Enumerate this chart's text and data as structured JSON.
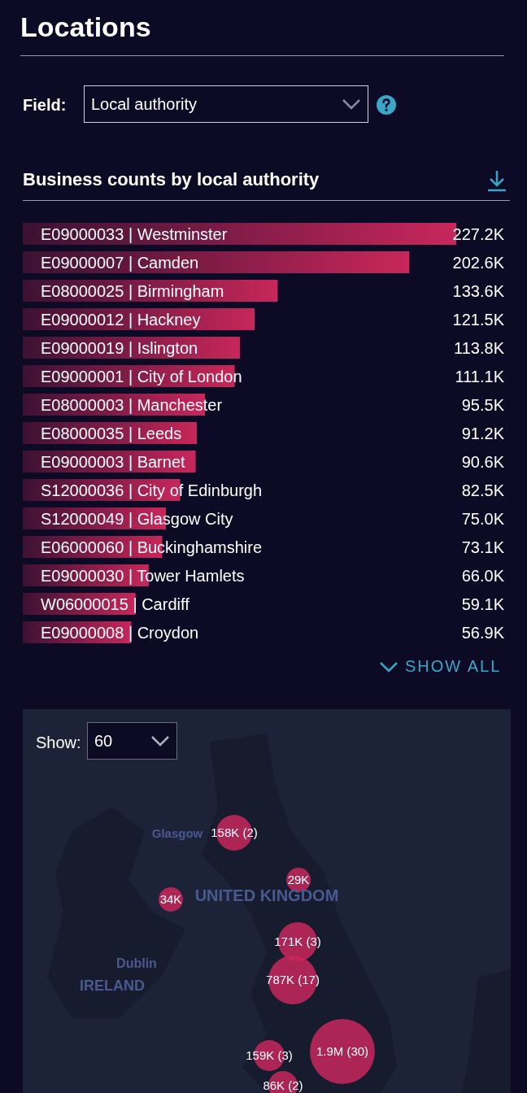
{
  "chart_data": [
    {
      "type": "bar",
      "orientation": "horizontal",
      "title": "Business counts by local authority",
      "categories": [
        "E09000033 | Westminster",
        "E09000007 | Camden",
        "E08000025 | Birmingham",
        "E09000012 | Hackney",
        "E09000019 | Islington",
        "E09000001 | City of London",
        "E08000003 | Manchester",
        "E08000035 | Leeds",
        "E09000003 | Barnet",
        "S12000036 | City of Edinburgh",
        "S12000049 | Glasgow City",
        "E06000060 | Buckinghamshire",
        "E09000030 | Tower Hamlets",
        "W06000015 | Cardiff",
        "E09000008 | Croydon"
      ],
      "values": [
        227200,
        202600,
        133600,
        121500,
        113800,
        111100,
        95500,
        91200,
        90600,
        82500,
        75000,
        73100,
        66000,
        59100,
        56900
      ],
      "value_labels": [
        "227.2K",
        "202.6K",
        "133.6K",
        "121.5K",
        "113.8K",
        "111.1K",
        "95.5K",
        "91.2K",
        "90.6K",
        "82.5K",
        "75.0K",
        "73.1K",
        "66.0K",
        "59.1K",
        "56.9K"
      ],
      "color": "#c8275a",
      "annotations": [
        "Locations",
        "Field:",
        "Local authority",
        "SHOW ALL"
      ]
    },
    {
      "type": "other",
      "annotations": [
        "Show:",
        "60",
        "Glasgow",
        "UNITED KINGDOM",
        "Dublin",
        "IRELAND",
        "158K (2)",
        "29K",
        "34K",
        "171K (3)",
        "787K (17)",
        "1.9M (30)",
        "159K (3)",
        "86K (2)"
      ]
    }
  ]
}
